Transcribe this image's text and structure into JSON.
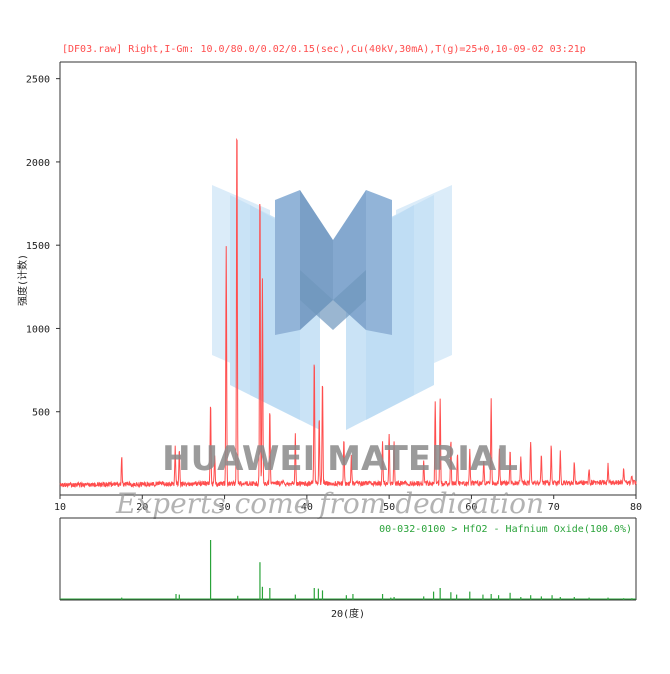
{
  "header": {
    "title": "[DF03.raw] Right,I-Gm: 10.0/80.0/0.02/0.15(sec),Cu(40kV,30mA),T(g)=25+0,10-09-02 03:21p"
  },
  "reference": {
    "label": "00-032-0100 > HfO2 - Hafnium Oxide(100.0%)"
  },
  "axes": {
    "ylabel": "强度(计数)",
    "xlabel": "2Θ(度)"
  },
  "watermark": {
    "brand": "HUAWEI MATERIAL",
    "slogan": "Experts come from dedication",
    "logo_colors": [
      "#bfe0f7",
      "#9ccbed",
      "#6c9ac4",
      "#3f74a6"
    ]
  },
  "colors": {
    "pattern": "#ff4d4d",
    "reference": "#2aa33a",
    "header_text": "#ff4d4d",
    "reference_text": "#2aa33a"
  },
  "chart_data": [
    {
      "type": "line",
      "name": "DF03.raw",
      "xlim": [
        10,
        80
      ],
      "ylim": [
        0,
        2600
      ],
      "x_ticks": [
        10,
        20,
        30,
        40,
        50,
        60,
        70,
        80
      ],
      "y_ticks": [
        500,
        1000,
        1500,
        2000,
        2500
      ],
      "background": [
        [
          10,
          60
        ],
        [
          20,
          65
        ],
        [
          40,
          70
        ],
        [
          60,
          70
        ],
        [
          80,
          75
        ]
      ],
      "peaks": [
        [
          17.5,
          230
        ],
        [
          24.0,
          280
        ],
        [
          24.5,
          260
        ],
        [
          28.3,
          560
        ],
        [
          28.8,
          230
        ],
        [
          30.2,
          1500
        ],
        [
          31.5,
          2300
        ],
        [
          34.3,
          1870
        ],
        [
          34.6,
          1300
        ],
        [
          35.5,
          520
        ],
        [
          38.6,
          350
        ],
        [
          40.9,
          820
        ],
        [
          41.5,
          460
        ],
        [
          41.9,
          700
        ],
        [
          44.5,
          330
        ],
        [
          45.4,
          220
        ],
        [
          49.2,
          320
        ],
        [
          50.0,
          360
        ],
        [
          50.6,
          300
        ],
        [
          54.2,
          190
        ],
        [
          55.6,
          560
        ],
        [
          56.2,
          580
        ],
        [
          57.5,
          320
        ],
        [
          58.3,
          250
        ],
        [
          59.8,
          260
        ],
        [
          61.5,
          210
        ],
        [
          62.4,
          560
        ],
        [
          63.4,
          270
        ],
        [
          64.7,
          260
        ],
        [
          66.0,
          230
        ],
        [
          67.2,
          320
        ],
        [
          68.5,
          230
        ],
        [
          69.7,
          290
        ],
        [
          70.8,
          250
        ],
        [
          72.5,
          190
        ],
        [
          74.3,
          150
        ],
        [
          76.6,
          180
        ],
        [
          78.5,
          140
        ],
        [
          79.5,
          110
        ]
      ]
    },
    {
      "type": "bar",
      "name": "00-032-0100 > HfO2 - Hafnium Oxide(100.0%)",
      "xlim": [
        10,
        80
      ],
      "ylim": [
        0,
        100
      ],
      "x": [
        17.5,
        24.1,
        24.5,
        28.3,
        31.6,
        34.3,
        34.6,
        35.5,
        38.6,
        40.9,
        41.4,
        41.9,
        44.8,
        45.6,
        49.2,
        50.2,
        50.6,
        54.2,
        55.4,
        56.2,
        57.5,
        58.2,
        59.8,
        61.4,
        62.4,
        63.3,
        64.7,
        66.0,
        67.2,
        68.5,
        69.8,
        70.8,
        72.5,
        74.3,
        76.6,
        78.5,
        79.5
      ],
      "values": [
        4,
        10,
        9,
        100,
        7,
        63,
        22,
        20,
        9,
        20,
        19,
        16,
        8,
        10,
        10,
        4,
        5,
        6,
        14,
        20,
        13,
        9,
        14,
        9,
        10,
        8,
        12,
        5,
        8,
        6,
        8,
        5,
        5,
        4,
        4,
        3,
        3
      ]
    }
  ]
}
